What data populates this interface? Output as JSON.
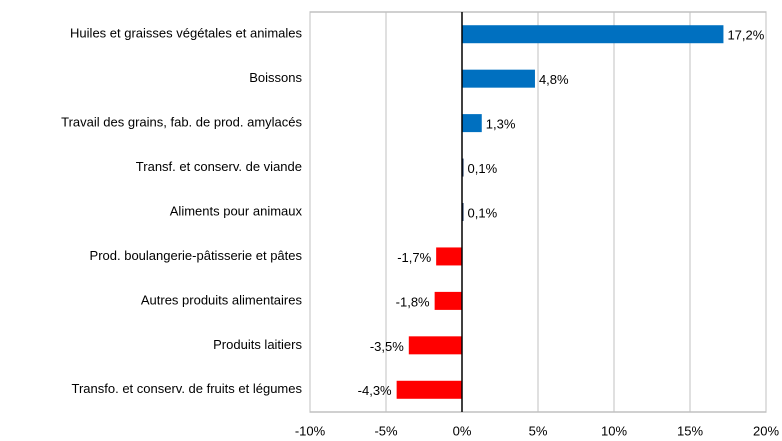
{
  "chart_data": {
    "type": "bar",
    "orientation": "horizontal",
    "categories": [
      "Huiles et graisses végétales et animales",
      "Boissons",
      "Travail des grains, fab. de prod. amylacés",
      "Transf. et conserv. de viande",
      "Aliments pour animaux",
      "Prod.  boulangerie-pâtisserie et  pâtes",
      "Autres produits alimentaires",
      "Produits laitiers",
      "Transfo. et conserv. de fruits et légumes"
    ],
    "values": [
      17.2,
      4.8,
      1.3,
      0.1,
      0.1,
      -1.7,
      -1.8,
      -3.5,
      -4.3
    ],
    "value_labels": [
      "17,2%",
      "4,8%",
      "1,3%",
      "0,1%",
      "0,1%",
      "-1,7%",
      "-1,8%",
      "-3,5%",
      "-4,3%"
    ],
    "colors": [
      "#0070c0",
      "#0070c0",
      "#0070c0",
      "#1f3864",
      "#1f3864",
      "#ff0000",
      "#ff0000",
      "#ff0000",
      "#ff0000"
    ],
    "xlim": [
      -10,
      20
    ],
    "xticks": [
      {
        "value": -10,
        "label": "-10%"
      },
      {
        "value": -5,
        "label": "-5%"
      },
      {
        "value": 0,
        "label": "0%"
      },
      {
        "value": 5,
        "label": "5%"
      },
      {
        "value": 10,
        "label": "10%"
      },
      {
        "value": 15,
        "label": "15%"
      },
      {
        "value": 20,
        "label": "20%"
      }
    ],
    "grid": true
  }
}
